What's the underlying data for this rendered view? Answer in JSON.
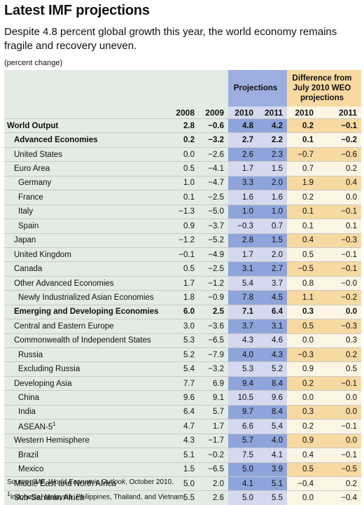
{
  "title": "Latest IMF projections",
  "subtitle": "Despite 4.8 percent global growth this year, the world economy remains fragile and recovery uneven.",
  "units": "(percent change)",
  "source": {
    "prefix": "Source: IMF, ",
    "publication": "World Economic Outlook",
    "date": ", October 2010."
  },
  "footnote": {
    "marker": "1",
    "text": "Indonesia, Malaysia, Philippines, Thailand, and Vietnam."
  },
  "colors": {
    "base": "#e3ece3",
    "projection": "#d4d9ef",
    "projection_highlight": "#8ea4da",
    "difference": "#fdf5e4",
    "difference_highlight": "#f7d9a2"
  },
  "chart_data": {
    "type": "table",
    "header": {
      "projections": "Projections",
      "difference": [
        "Difference from",
        "July 2010 WEO",
        "projections"
      ]
    },
    "columns": [
      "2008",
      "2009",
      "2010",
      "2011",
      "2010",
      "2011"
    ],
    "rows": [
      {
        "label": "World Output",
        "level": 0,
        "bold": true,
        "values": [
          "2.8",
          "−0.6",
          "4.8",
          "4.2",
          "0.2",
          "−0.1"
        ],
        "hl_proj": true,
        "hl_diff": true
      },
      {
        "label": "Advanced Economies",
        "level": 1,
        "bold": true,
        "values": [
          "0.2",
          "−3.2",
          "2.7",
          "2.2",
          "0.1",
          "−0.2"
        ],
        "hl_proj": false,
        "hl_diff": false
      },
      {
        "label": "United States",
        "level": 1,
        "bold": false,
        "values": [
          "0.0",
          "−2.6",
          "2.6",
          "2.3",
          "−0.7",
          "−0.6"
        ],
        "hl_proj": true,
        "hl_diff": true
      },
      {
        "label": "Euro Area",
        "level": 1,
        "bold": false,
        "values": [
          "0.5",
          "−4.1",
          "1.7",
          "1.5",
          "0.7",
          "0.2"
        ],
        "hl_proj": false,
        "hl_diff": false
      },
      {
        "label": "Germany",
        "level": 2,
        "bold": false,
        "values": [
          "1.0",
          "−4.7",
          "3.3",
          "2.0",
          "1.9",
          "0.4"
        ],
        "hl_proj": true,
        "hl_diff": true
      },
      {
        "label": "France",
        "level": 2,
        "bold": false,
        "values": [
          "0.1",
          "−2.5",
          "1.6",
          "1.6",
          "0.2",
          "0.0"
        ],
        "hl_proj": false,
        "hl_diff": false
      },
      {
        "label": "Italy",
        "level": 2,
        "bold": false,
        "values": [
          "−1.3",
          "−5.0",
          "1.0",
          "1.0",
          "0.1",
          "−0.1"
        ],
        "hl_proj": true,
        "hl_diff": true
      },
      {
        "label": "Spain",
        "level": 2,
        "bold": false,
        "values": [
          "0.9",
          "−3.7",
          "−0.3",
          "0.7",
          "0.1",
          "0.1"
        ],
        "hl_proj": false,
        "hl_diff": false
      },
      {
        "label": "Japan",
        "level": 1,
        "bold": false,
        "values": [
          "−1.2",
          "−5.2",
          "2.8",
          "1.5",
          "0.4",
          "−0.3"
        ],
        "hl_proj": true,
        "hl_diff": true
      },
      {
        "label": "United Kingdom",
        "level": 1,
        "bold": false,
        "values": [
          "−0.1",
          "−4.9",
          "1.7",
          "2.0",
          "0.5",
          "−0.1"
        ],
        "hl_proj": false,
        "hl_diff": false
      },
      {
        "label": "Canada",
        "level": 1,
        "bold": false,
        "values": [
          "0.5",
          "−2.5",
          "3.1",
          "2.7",
          "−0.5",
          "−0.1"
        ],
        "hl_proj": true,
        "hl_diff": true
      },
      {
        "label": "Other Advanced Economies",
        "level": 1,
        "bold": false,
        "values": [
          "1.7",
          "−1.2",
          "5.4",
          "3.7",
          "0.8",
          "−0.0"
        ],
        "hl_proj": false,
        "hl_diff": false
      },
      {
        "label": "Newly Industrialized Asian Economies",
        "level": 2,
        "bold": false,
        "values": [
          "1.8",
          "−0.9",
          "7.8",
          "4.5",
          "1.1",
          "−0.2"
        ],
        "hl_proj": true,
        "hl_diff": true
      },
      {
        "label": "Emerging and Developing Economies",
        "level": 1,
        "bold": true,
        "values": [
          "6.0",
          "2.5",
          "7.1",
          "6.4",
          "0.3",
          "0.0"
        ],
        "hl_proj": false,
        "hl_diff": false
      },
      {
        "label": "Central and Eastern Europe",
        "level": 1,
        "bold": false,
        "values": [
          "3.0",
          "−3.6",
          "3.7",
          "3.1",
          "0.5",
          "−0.3"
        ],
        "hl_proj": true,
        "hl_diff": true
      },
      {
        "label": "Commonwealth of Independent States",
        "level": 1,
        "bold": false,
        "values": [
          "5.3",
          "−6.5",
          "4.3",
          "4.6",
          "0.0",
          "0.3"
        ],
        "hl_proj": false,
        "hl_diff": false
      },
      {
        "label": "Russia",
        "level": 2,
        "bold": false,
        "values": [
          "5.2",
          "−7.9",
          "4.0",
          "4.3",
          "−0.3",
          "0.2"
        ],
        "hl_proj": true,
        "hl_diff": true
      },
      {
        "label": "Excluding Russia",
        "level": 2,
        "bold": false,
        "values": [
          "5.4",
          "−3.2",
          "5.3",
          "5.2",
          "0.9",
          "0.5"
        ],
        "hl_proj": false,
        "hl_diff": false
      },
      {
        "label": "Developing Asia",
        "level": 1,
        "bold": false,
        "values": [
          "7.7",
          "6.9",
          "9.4",
          "8.4",
          "0.2",
          "−0.1"
        ],
        "hl_proj": true,
        "hl_diff": true
      },
      {
        "label": "China",
        "level": 2,
        "bold": false,
        "values": [
          "9.6",
          "9.1",
          "10.5",
          "9.6",
          "0.0",
          "0.0"
        ],
        "hl_proj": false,
        "hl_diff": false
      },
      {
        "label": "India",
        "level": 2,
        "bold": false,
        "values": [
          "6.4",
          "5.7",
          "9.7",
          "8.4",
          "0.3",
          "0.0"
        ],
        "hl_proj": true,
        "hl_diff": true
      },
      {
        "label": "ASEAN-5",
        "sup": "1",
        "level": 2,
        "bold": false,
        "values": [
          "4.7",
          "1.7",
          "6.6",
          "5.4",
          "0.2",
          "−0.1"
        ],
        "hl_proj": false,
        "hl_diff": false
      },
      {
        "label": "Western Hemisphere",
        "level": 1,
        "bold": false,
        "values": [
          "4.3",
          "−1.7",
          "5.7",
          "4.0",
          "0.9",
          "0.0"
        ],
        "hl_proj": true,
        "hl_diff": true
      },
      {
        "label": "Brazil",
        "level": 2,
        "bold": false,
        "values": [
          "5.1",
          "−0.2",
          "7.5",
          "4.1",
          "0.4",
          "−0.1"
        ],
        "hl_proj": false,
        "hl_diff": false
      },
      {
        "label": "Mexico",
        "level": 2,
        "bold": false,
        "values": [
          "1.5",
          "−6.5",
          "5.0",
          "3.9",
          "0.5",
          "−0.5"
        ],
        "hl_proj": true,
        "hl_diff": true
      },
      {
        "label": "Middle East and North Africa",
        "level": 1,
        "bold": false,
        "values": [
          "5.0",
          "2.0",
          "4.1",
          "5.1",
          "−0.4",
          "0.2"
        ],
        "hl_proj": true,
        "hl_diff": false
      },
      {
        "label": "Sub-Saharan Africa",
        "level": 1,
        "bold": false,
        "values": [
          "5.5",
          "2.6",
          "5.0",
          "5.5",
          "0.0",
          "−0.4"
        ],
        "hl_proj": false,
        "hl_diff": false
      }
    ]
  }
}
